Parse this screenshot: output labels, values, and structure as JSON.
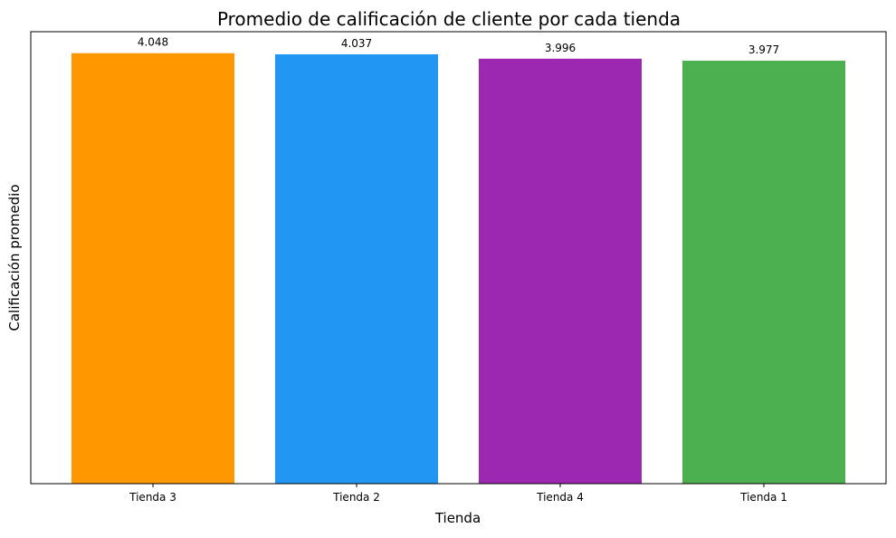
{
  "chart_data": {
    "type": "bar",
    "title": "Promedio de calificación de cliente por cada tienda",
    "xlabel": "Tienda",
    "ylabel": "Calificación promedio",
    "categories": [
      "Tienda 3",
      "Tienda 2",
      "Tienda 4",
      "Tienda 1"
    ],
    "values": [
      4.048,
      4.037,
      3.996,
      3.977
    ],
    "value_labels": [
      "4.048",
      "4.037",
      "3.996",
      "3.977"
    ],
    "colors": [
      "#ff9800",
      "#2196f3",
      "#9c27b0",
      "#4caf50"
    ],
    "ylim": [
      0,
      4.25
    ],
    "y_ticks_visible": false,
    "grid": false,
    "legend": "none"
  }
}
